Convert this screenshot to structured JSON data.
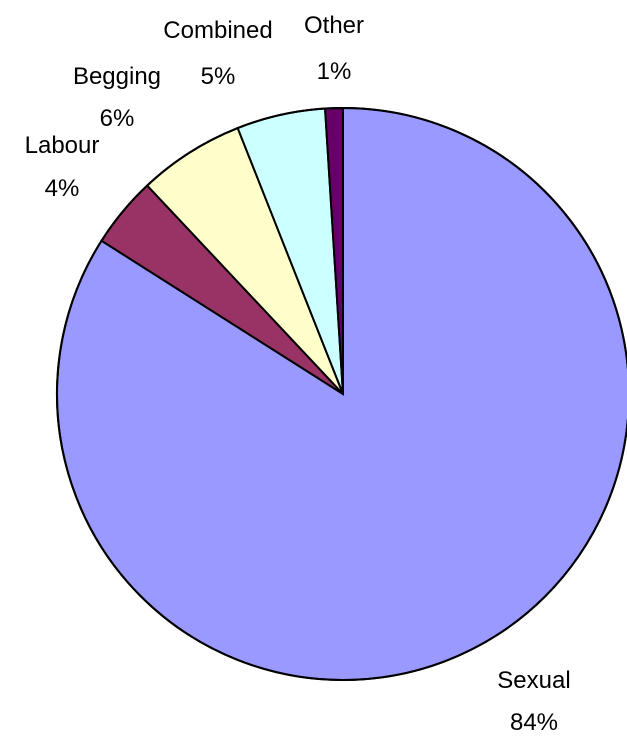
{
  "chart_data": {
    "type": "pie",
    "title": "",
    "start_angle": "12 o'clock",
    "direction": "clockwise",
    "legend": "none",
    "slices": [
      {
        "name": "Sexual",
        "value": 84,
        "label": "84%",
        "color": "#9999FF"
      },
      {
        "name": "Labour",
        "value": 4,
        "label": "4%",
        "color": "#993366"
      },
      {
        "name": "Begging",
        "value": 6,
        "label": "6%",
        "color": "#FFFFCC"
      },
      {
        "name": "Combined",
        "value": 5,
        "label": "5%",
        "color": "#CCFFFF"
      },
      {
        "name": "Other",
        "value": 1,
        "label": "1%",
        "color": "#660066"
      }
    ]
  }
}
